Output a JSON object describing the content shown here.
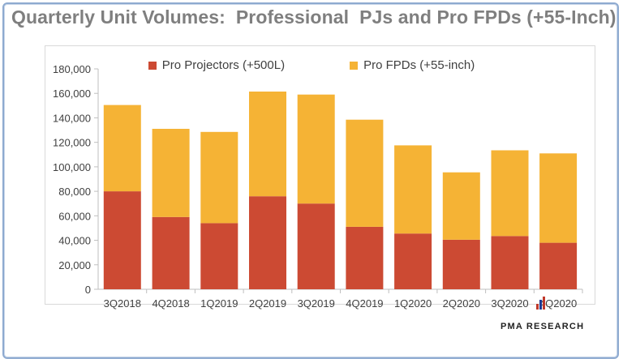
{
  "title": "Quarterly Unit Volumes:  Professional  PJs and Pro FPDs (+55-Inch)",
  "logo": {
    "text": "PMA RESEARCH",
    "bar_colors": [
      "#c0392b",
      "#1f3a93",
      "#c0392b"
    ]
  },
  "colors": {
    "projectors": "#cc4a33",
    "fpds": "#f5b335",
    "axis_text": "#404040",
    "grid": "#d9d9d9"
  },
  "chart_data": {
    "type": "bar",
    "stacked": true,
    "title": "Quarterly Unit Volumes:  Professional  PJs and Pro FPDs (+55-Inch)",
    "xlabel": "",
    "ylabel": "",
    "categories": [
      "3Q2018",
      "4Q2018",
      "1Q2019",
      "2Q2019",
      "3Q2019",
      "4Q2019",
      "1Q2020",
      "2Q2020",
      "3Q2020",
      "4Q2020"
    ],
    "series": [
      {
        "name": "Pro Projectors (+500L)",
        "color": "#cc4a33",
        "values": [
          80000,
          59000,
          54000,
          76000,
          70000,
          51000,
          45500,
          40500,
          43500,
          38000
        ]
      },
      {
        "name": "Pro FPDs (+55-inch)",
        "color": "#f5b335",
        "values": [
          70500,
          72000,
          74500,
          85500,
          89000,
          87500,
          72000,
          55000,
          70000,
          73000
        ]
      }
    ],
    "ylim": [
      0,
      180000
    ],
    "yticks": [
      "0",
      "20,000",
      "40,000",
      "60,000",
      "80,000",
      "100,000",
      "120,000",
      "140,000",
      "160,000",
      "180,000"
    ],
    "legend_position": "top",
    "grid": false
  }
}
